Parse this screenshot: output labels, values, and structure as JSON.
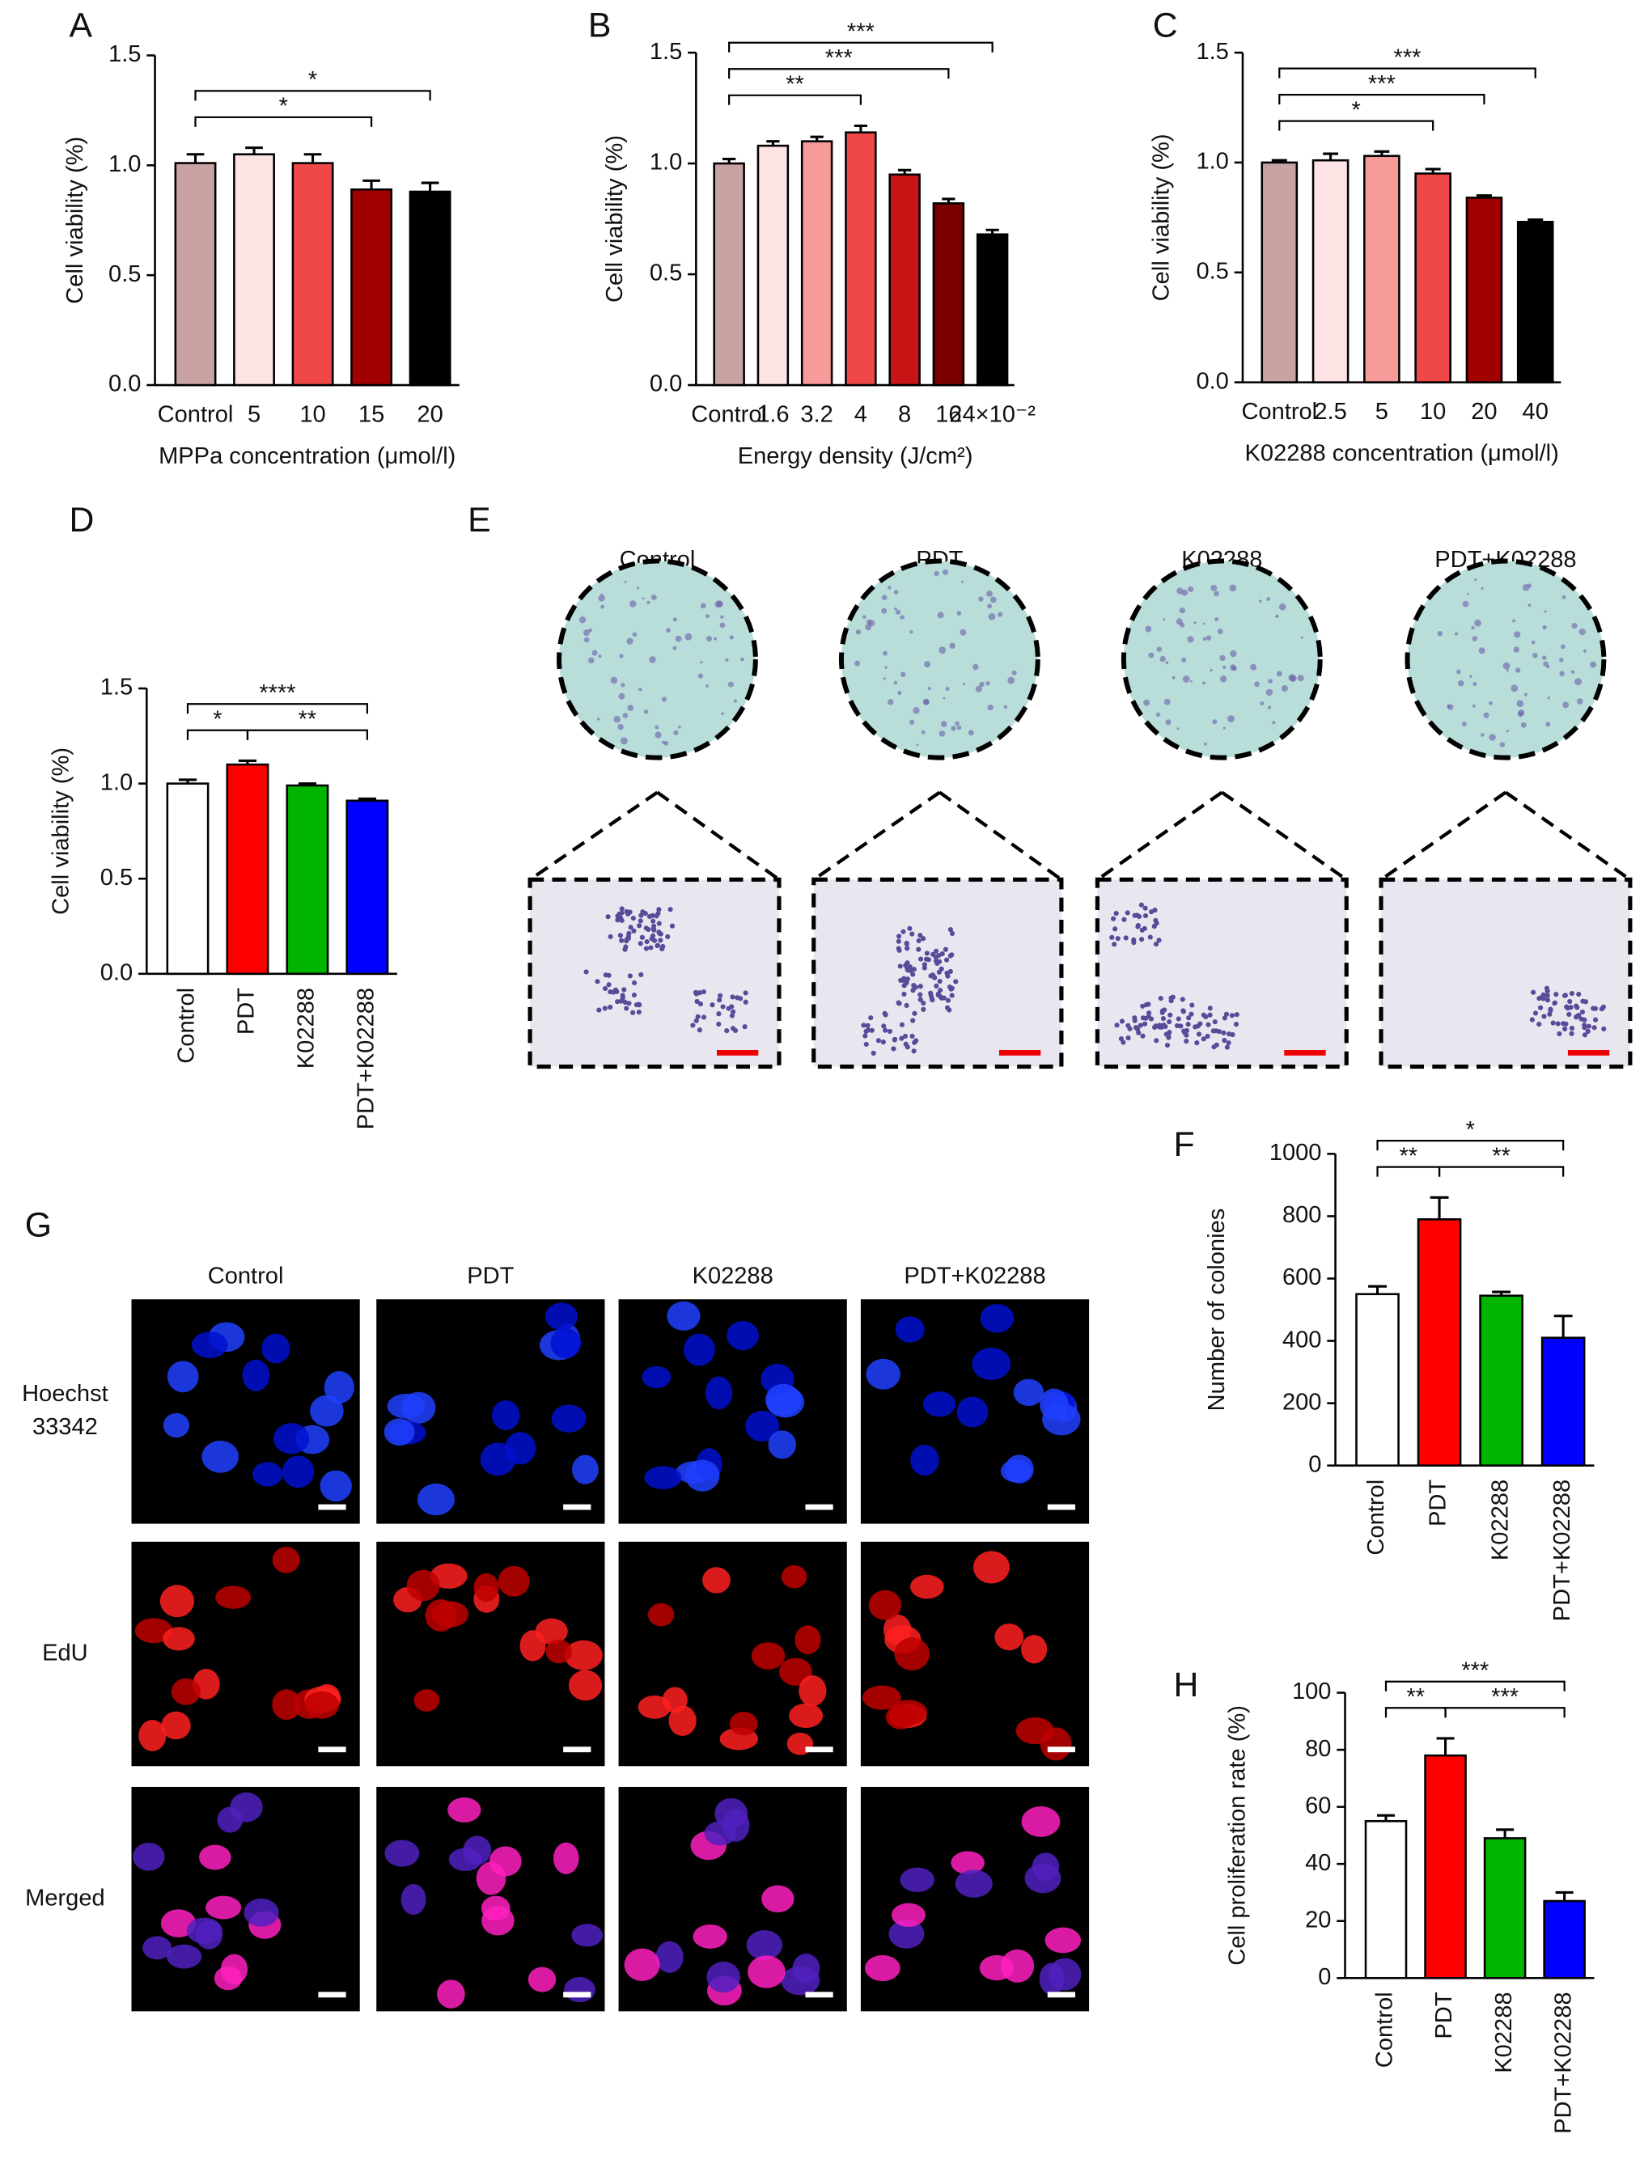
{
  "chart_data": [
    {
      "type": "bar",
      "panel": "A",
      "ylabel": "Cell viability (%)",
      "xlabel": "MPPa concentration (μmol/l)",
      "categories": [
        "Control",
        "5",
        "10",
        "15",
        "20"
      ],
      "values": [
        1.01,
        1.05,
        1.01,
        0.89,
        0.88
      ],
      "errors": [
        0.04,
        0.03,
        0.04,
        0.04,
        0.04
      ],
      "colors": [
        "#c9a3a3",
        "#fde3e3",
        "#f04848",
        "#a00000",
        "#000000"
      ],
      "ylim": [
        0,
        1.5
      ],
      "yticks": [
        {
          "value": 0,
          "label": "0.0"
        },
        0.5,
        {
          "value": 1,
          "label": "1.0"
        },
        1.5
      ],
      "significance": [
        {
          "between": [
            "Control",
            "15"
          ],
          "label": "*"
        },
        {
          "between": [
            "Control",
            "20"
          ],
          "label": "*"
        }
      ]
    },
    {
      "type": "bar",
      "panel": "B",
      "ylabel": "Cell viability (%)",
      "xlabel": "Energy density (J/cm²)",
      "categories": [
        "Control",
        "1.6",
        "3.2",
        "4",
        "8",
        "16",
        "24×10⁻²"
      ],
      "values": [
        1.0,
        1.08,
        1.1,
        1.14,
        0.95,
        0.82,
        0.68
      ],
      "errors": [
        0.02,
        0.02,
        0.02,
        0.03,
        0.02,
        0.02,
        0.02
      ],
      "colors": [
        "#c9a3a3",
        "#fde3e3",
        "#f79a9a",
        "#f04848",
        "#c81414",
        "#7a0000",
        "#000000"
      ],
      "ylim": [
        0,
        1.5
      ],
      "yticks": [
        {
          "value": 0,
          "label": "0.0"
        },
        0.5,
        {
          "value": 1,
          "label": "1.0"
        },
        1.5
      ],
      "significance": [
        {
          "between": [
            "Control",
            "4"
          ],
          "label": "**"
        },
        {
          "between": [
            "Control",
            "16"
          ],
          "label": "***"
        },
        {
          "between": [
            "Control",
            "24×10⁻²"
          ],
          "label": "***"
        }
      ]
    },
    {
      "type": "bar",
      "panel": "C",
      "ylabel": "Cell viability (%)",
      "xlabel": "K02288 concentration (μmol/l)",
      "categories": [
        "Control",
        "2.5",
        "5",
        "10",
        "20",
        "40"
      ],
      "values": [
        1.0,
        1.01,
        1.03,
        0.95,
        0.84,
        0.73
      ],
      "errors": [
        0.01,
        0.03,
        0.02,
        0.02,
        0.01,
        0.01
      ],
      "colors": [
        "#c9a3a3",
        "#fde3e3",
        "#f79a9a",
        "#f04848",
        "#a00000",
        "#000000"
      ],
      "ylim": [
        0,
        1.5
      ],
      "yticks": [
        {
          "value": 0,
          "label": "0.0"
        },
        0.5,
        {
          "value": 1,
          "label": "1.0"
        },
        1.5
      ],
      "significance": [
        {
          "between": [
            "Control",
            "10"
          ],
          "label": "*"
        },
        {
          "between": [
            "Control",
            "20"
          ],
          "label": "***"
        },
        {
          "between": [
            "Control",
            "40"
          ],
          "label": "***"
        }
      ]
    },
    {
      "type": "bar",
      "panel": "D",
      "ylabel": "Cell viability (%)",
      "categories": [
        "Control",
        "PDT",
        "K02288",
        "PDT+K02288"
      ],
      "values": [
        1.0,
        1.1,
        0.99,
        0.91
      ],
      "errors": [
        0.02,
        0.02,
        0.01,
        0.01
      ],
      "colors": [
        "#ffffff",
        "#ff0000",
        "#00b400",
        "#0000ff"
      ],
      "ylim": [
        0,
        1.5
      ],
      "yticks": [
        {
          "value": 0,
          "label": "0.0"
        },
        0.5,
        {
          "value": 1,
          "label": "1.0"
        },
        1.5
      ],
      "significance": [
        {
          "between": [
            "Control",
            "PDT"
          ],
          "label": "*"
        },
        {
          "between": [
            "PDT",
            "PDT+K02288"
          ],
          "label": "**"
        },
        {
          "between": [
            "Control",
            "PDT+K02288"
          ],
          "label": "****"
        }
      ]
    },
    {
      "type": "bar",
      "panel": "F",
      "ylabel": "Number of colonies",
      "categories": [
        "Control",
        "PDT",
        "K02288",
        "PDT+K02288"
      ],
      "values": [
        550,
        790,
        545,
        410
      ],
      "errors": [
        25,
        70,
        12,
        70
      ],
      "colors": [
        "#ffffff",
        "#ff0000",
        "#00b400",
        "#0000ff"
      ],
      "ylim": [
        0,
        1000
      ],
      "yticks": [
        0,
        200,
        400,
        600,
        800,
        1000
      ],
      "significance": [
        {
          "between": [
            "Control",
            "PDT"
          ],
          "label": "**"
        },
        {
          "between": [
            "PDT",
            "PDT+K02288"
          ],
          "label": "**"
        },
        {
          "between": [
            "Control",
            "PDT+K02288"
          ],
          "label": "*"
        }
      ]
    },
    {
      "type": "bar",
      "panel": "H",
      "ylabel": "Cell proliferation rate (%)",
      "categories": [
        "Control",
        "PDT",
        "K02288",
        "PDT+K02288"
      ],
      "values": [
        55,
        78,
        49,
        27
      ],
      "errors": [
        2,
        6,
        3,
        3
      ],
      "colors": [
        "#ffffff",
        "#ff0000",
        "#00b400",
        "#0000ff"
      ],
      "ylim": [
        0,
        100
      ],
      "yticks": [
        0,
        20,
        40,
        60,
        80,
        100
      ],
      "significance": [
        {
          "between": [
            "Control",
            "PDT"
          ],
          "label": "**"
        },
        {
          "between": [
            "PDT",
            "PDT+K02288"
          ],
          "label": "***"
        },
        {
          "between": [
            "Control",
            "PDT+K02288"
          ],
          "label": "***"
        }
      ]
    }
  ],
  "panel_e": {
    "label": "E",
    "columns": [
      "Control",
      "PDT",
      "K02288",
      "PDT+K02288"
    ]
  },
  "panel_g": {
    "label": "G",
    "columns": [
      "Control",
      "PDT",
      "K02288",
      "PDT+K02288"
    ],
    "row_labels": [
      [
        "Hoechst",
        "33342"
      ],
      [
        "EdU"
      ],
      [
        "Merged"
      ]
    ]
  }
}
